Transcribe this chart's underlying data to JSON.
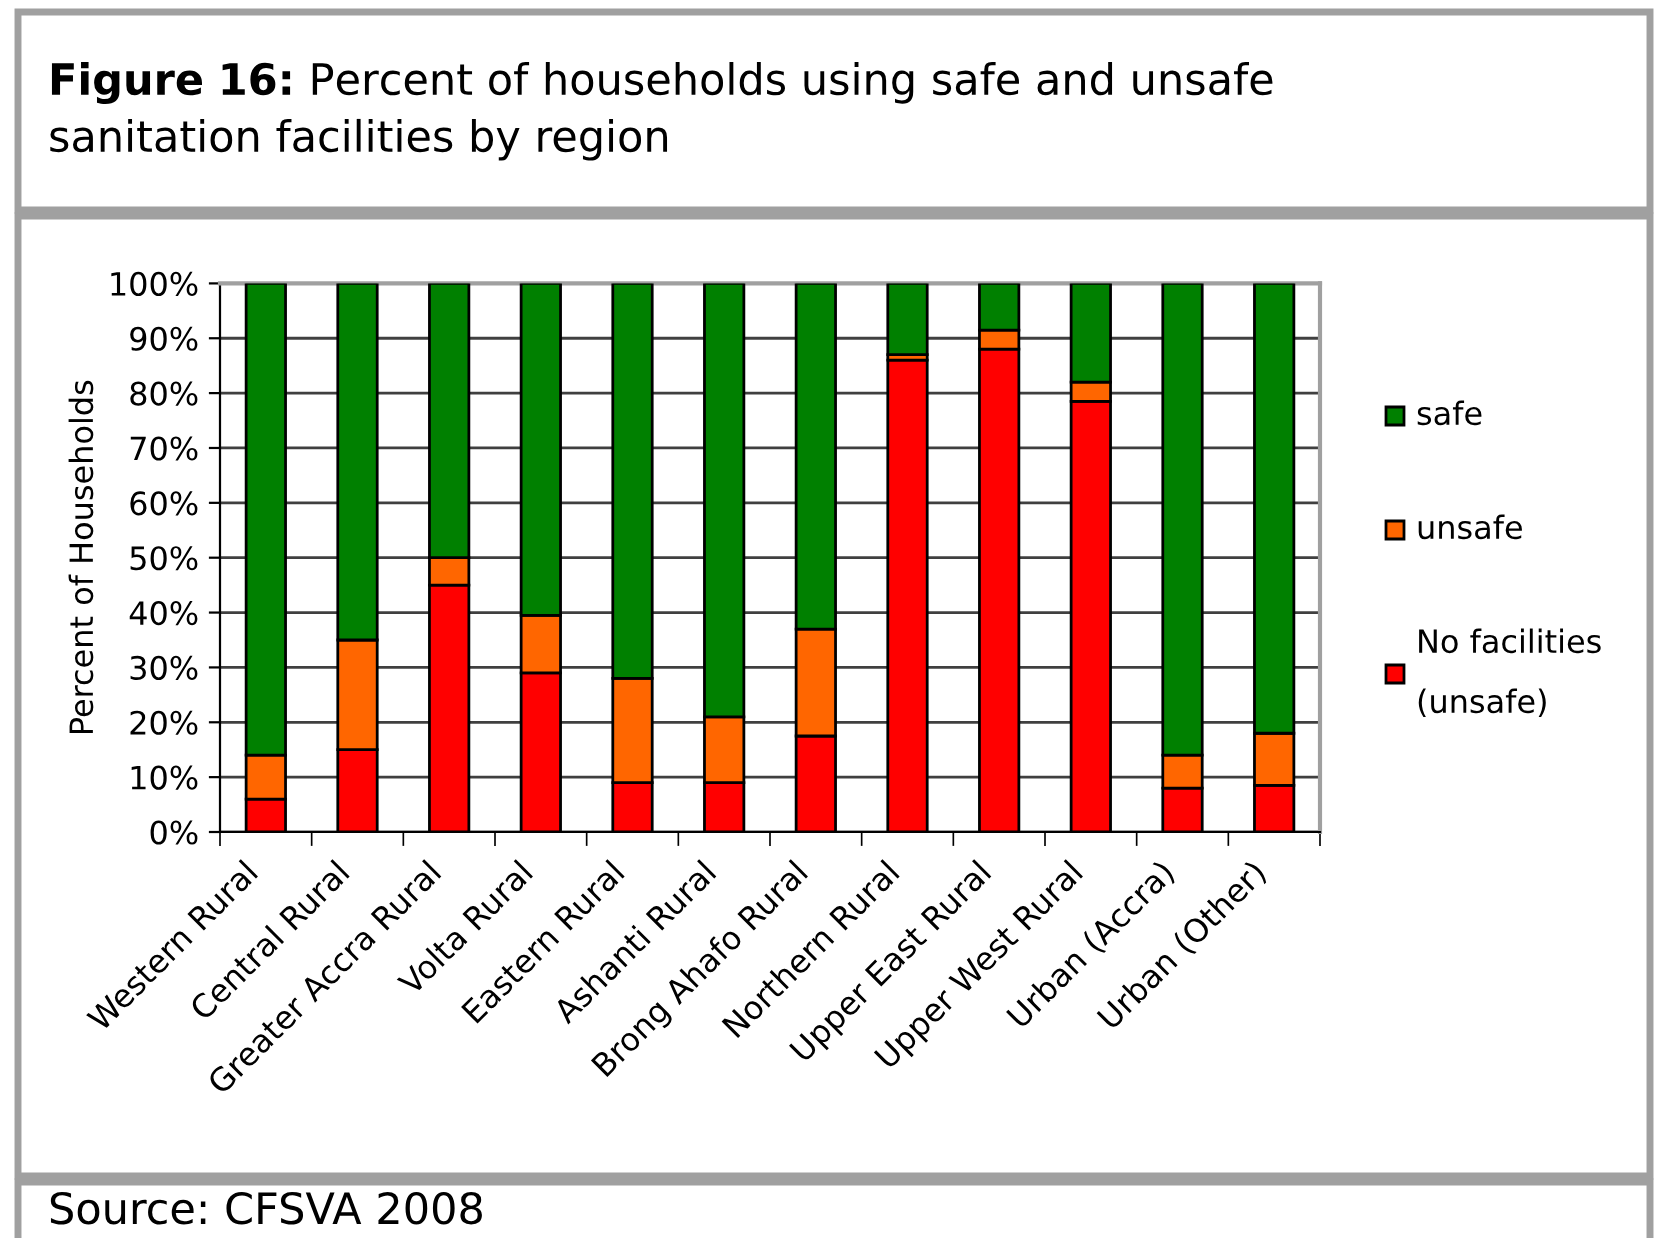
{
  "chart_data": {
    "type": "bar",
    "stacked": true,
    "title": "Figure 16:",
    "subtitle": "Percent of households using safe and unsafe sanitation facilities by region",
    "ylabel": "Percent of Households",
    "annotations": [
      "Source: CFSVA 2008"
    ],
    "categories": [
      "Western Rural",
      "Central Rural",
      "Greater Accra Rural",
      "Volta Rural",
      "Eastern Rural",
      "Ashanti Rural",
      "Brong Ahafo Rural",
      "Northern Rural",
      "Upper East Rural",
      "Upper West Rural",
      "Urban (Accra)",
      "Urban (Other)"
    ],
    "series": [
      {
        "name": "No facilities (unsafe)",
        "color": "#ff0000",
        "values": [
          6,
          15,
          45,
          29,
          9,
          9,
          17.5,
          86,
          88,
          78.5,
          8,
          8.5
        ]
      },
      {
        "name": "unsafe",
        "color": "#ff6600",
        "values": [
          8,
          20,
          5,
          10.5,
          19,
          12,
          19.5,
          1,
          3.5,
          3.5,
          6,
          9.5
        ]
      },
      {
        "name": "safe",
        "color": "#008000",
        "values": [
          86,
          65,
          50,
          60.5,
          72,
          79,
          63,
          13,
          8.5,
          18,
          86,
          82
        ]
      }
    ],
    "ylim": [
      0,
      100
    ],
    "yticks": [
      {
        "value": 0,
        "label": "0%"
      },
      {
        "value": 10,
        "label": "10%"
      },
      {
        "value": 20,
        "label": "20%"
      },
      {
        "value": 30,
        "label": "30%"
      },
      {
        "value": 40,
        "label": "40%"
      },
      {
        "value": 50,
        "label": "50%"
      },
      {
        "value": 60,
        "label": "60%"
      },
      {
        "value": 70,
        "label": "70%"
      },
      {
        "value": 80,
        "label": "80%"
      },
      {
        "value": 90,
        "label": "90%"
      },
      {
        "value": 100,
        "label": "100%"
      }
    ],
    "grid": "y",
    "legend": "right"
  }
}
